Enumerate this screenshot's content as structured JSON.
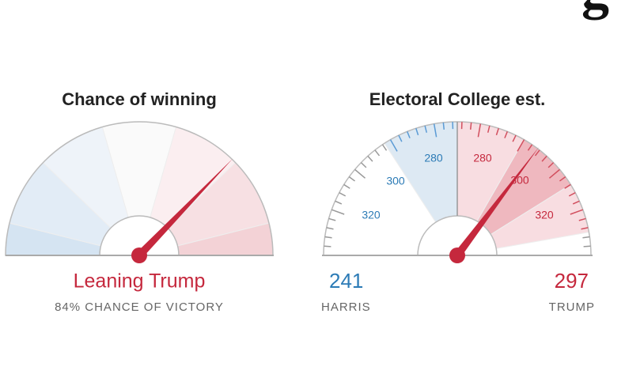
{
  "heading_fragment": "g",
  "chance_gauge": {
    "title": "Chance of winning",
    "verdict": "Leaning Trump",
    "caption": "84% CHANCE OF VICTORY"
  },
  "electoral_gauge": {
    "title": "Electoral College est.",
    "left_ticks": [
      "280",
      "300",
      "320"
    ],
    "right_ticks": [
      "280",
      "300",
      "320"
    ],
    "harris_votes": "241",
    "harris_label": "HARRIS",
    "trump_votes": "297",
    "trump_label": "TRUMP"
  }
}
